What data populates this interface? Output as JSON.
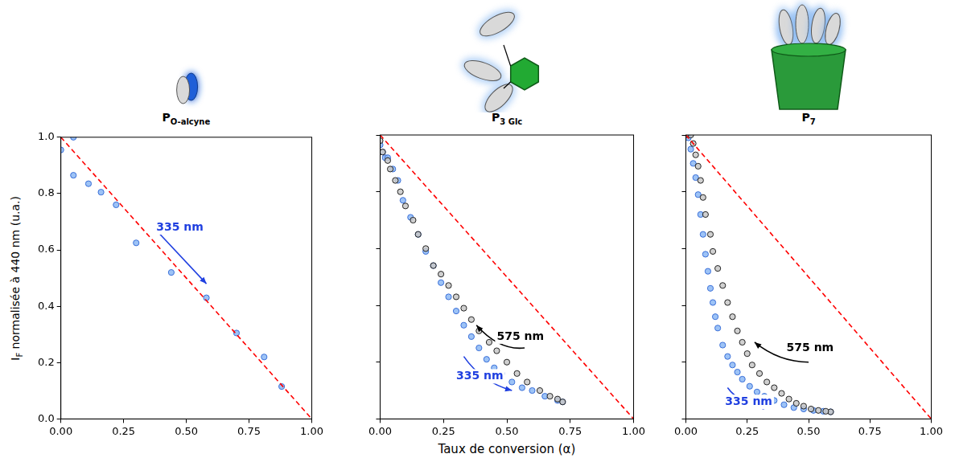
{
  "xlabel": "Taux de conversion (α)",
  "ylabel": [
    {
      "text": "I"
    },
    {
      "text": "F",
      "sub": true
    },
    {
      "text": " normalisée à 440 nm  (u.a.)"
    }
  ],
  "chart_data": [
    {
      "type": "scatter",
      "title": [
        {
          "text": "P"
        },
        {
          "text": "O-alcyne",
          "sub": true
        }
      ],
      "xlim": [
        0,
        1
      ],
      "xticks": [
        {
          "value": 0,
          "label": "0.00"
        },
        {
          "value": 0.25,
          "label": "0.25"
        },
        {
          "value": 0.5,
          "label": "0.50"
        },
        {
          "value": 0.75,
          "label": "0.75"
        },
        {
          "value": 1,
          "label": "1.00"
        }
      ],
      "ylim": [
        0,
        1
      ],
      "yticks": [
        {
          "value": 0,
          "label": "0.0"
        },
        {
          "value": 0.2,
          "label": "0.2"
        },
        {
          "value": 0.4,
          "label": "0.4"
        },
        {
          "value": 0.6,
          "label": "0.6"
        },
        {
          "value": 0.8,
          "label": "0.8"
        },
        {
          "value": 1,
          "label": "1.0"
        }
      ],
      "grid": false,
      "series": [
        {
          "color": "#ff0000",
          "line_style": "dashed",
          "x": [
            0,
            1
          ],
          "values": [
            1,
            0
          ]
        },
        {
          "color": "#3a6fd8",
          "marker": "circle",
          "x": [
            0.0,
            0.05,
            0.05,
            0.11,
            0.16,
            0.22,
            0.3,
            0.44,
            0.58,
            0.7,
            0.81,
            0.88
          ],
          "values": [
            0.955,
            1.0,
            0.865,
            0.835,
            0.805,
            0.76,
            0.625,
            0.52,
            0.43,
            0.305,
            0.22,
            0.115
          ]
        }
      ],
      "annotations": [
        {
          "text": "335 nm",
          "color": "#1f3fe0"
        }
      ]
    },
    {
      "type": "scatter",
      "title": [
        {
          "text": "P"
        },
        {
          "text": "3 Glc",
          "sub": true
        }
      ],
      "xlim": [
        0,
        1
      ],
      "xticks": [
        {
          "value": 0,
          "label": "0.00"
        },
        {
          "value": 0.25,
          "label": "0.25"
        },
        {
          "value": 0.5,
          "label": "0.50"
        },
        {
          "value": 0.75,
          "label": "0.75"
        },
        {
          "value": 1,
          "label": "1.00"
        }
      ],
      "ylim": [
        0,
        1
      ],
      "yticks": [
        {
          "value": 0,
          "label": "0.0"
        },
        {
          "value": 0.2,
          "label": "0.2"
        },
        {
          "value": 0.4,
          "label": "0.4"
        },
        {
          "value": 0.6,
          "label": "0.6"
        },
        {
          "value": 0.8,
          "label": "0.8"
        },
        {
          "value": 1,
          "label": "1.0"
        }
      ],
      "tick_labels": "x",
      "grid": false,
      "series": [
        {
          "color": "#ff0000",
          "line_style": "dashed",
          "x": [
            0,
            1
          ],
          "values": [
            1,
            0
          ]
        },
        {
          "color": "#222222",
          "marker": "circle",
          "x": [
            0.72,
            0.7,
            0.67,
            0.63,
            0.58,
            0.54,
            0.5,
            0.46,
            0.43,
            0.39,
            0.36,
            0.33,
            0.3,
            0.27,
            0.24,
            0.21,
            0.18,
            0.15,
            0.13,
            0.1,
            0.08,
            0.06,
            0.04,
            0.03,
            0.01,
            0.0
          ],
          "values": [
            0.06,
            0.07,
            0.08,
            0.1,
            0.13,
            0.16,
            0.2,
            0.24,
            0.27,
            0.31,
            0.35,
            0.39,
            0.43,
            0.47,
            0.51,
            0.54,
            0.6,
            0.65,
            0.7,
            0.75,
            0.8,
            0.84,
            0.88,
            0.91,
            0.94,
            0.98
          ]
        },
        {
          "color": "#3a6fd8",
          "marker": "circle",
          "x": [
            0.0,
            0.01,
            0.02,
            0.03,
            0.05,
            0.07,
            0.09,
            0.12,
            0.15,
            0.18,
            0.21,
            0.24,
            0.27,
            0.3,
            0.33,
            0.36,
            0.39,
            0.42,
            0.45,
            0.48,
            0.52,
            0.56,
            0.6,
            0.65,
            0.7,
            0.72
          ],
          "values": [
            0.965,
            0.94,
            0.92,
            0.92,
            0.88,
            0.84,
            0.77,
            0.71,
            0.65,
            0.59,
            0.54,
            0.48,
            0.43,
            0.38,
            0.33,
            0.29,
            0.25,
            0.21,
            0.18,
            0.16,
            0.13,
            0.11,
            0.1,
            0.08,
            0.065,
            0.06
          ]
        }
      ],
      "annotations": [
        {
          "text": "575 nm",
          "color": "#000000"
        },
        {
          "text": "335 nm",
          "color": "#1f3fe0"
        }
      ]
    },
    {
      "type": "scatter",
      "title": [
        {
          "text": "P"
        },
        {
          "text": "7",
          "sub": true
        }
      ],
      "xlim": [
        0,
        1
      ],
      "xticks": [
        {
          "value": 0,
          "label": "0.00"
        },
        {
          "value": 0.25,
          "label": "0.25"
        },
        {
          "value": 0.5,
          "label": "0.50"
        },
        {
          "value": 0.75,
          "label": "0.75"
        },
        {
          "value": 1,
          "label": "1.00"
        }
      ],
      "ylim": [
        0,
        1
      ],
      "yticks": [
        {
          "value": 0,
          "label": "0.0"
        },
        {
          "value": 0.2,
          "label": "0.2"
        },
        {
          "value": 0.4,
          "label": "0.4"
        },
        {
          "value": 0.6,
          "label": "0.6"
        },
        {
          "value": 0.8,
          "label": "0.8"
        },
        {
          "value": 1,
          "label": "1.0"
        }
      ],
      "tick_labels": "x",
      "grid": false,
      "series": [
        {
          "color": "#ff0000",
          "line_style": "dashed",
          "x": [
            0,
            1
          ],
          "values": [
            1,
            0
          ]
        },
        {
          "color": "#222222",
          "marker": "circle",
          "x": [
            0.59,
            0.57,
            0.54,
            0.51,
            0.48,
            0.45,
            0.42,
            0.39,
            0.36,
            0.33,
            0.3,
            0.27,
            0.25,
            0.23,
            0.21,
            0.19,
            0.17,
            0.15,
            0.13,
            0.11,
            0.1,
            0.08,
            0.07,
            0.06,
            0.05,
            0.04,
            0.03,
            0.02,
            0.0
          ],
          "values": [
            0.025,
            0.027,
            0.03,
            0.035,
            0.045,
            0.055,
            0.07,
            0.09,
            0.11,
            0.13,
            0.16,
            0.19,
            0.23,
            0.27,
            0.31,
            0.36,
            0.41,
            0.47,
            0.53,
            0.59,
            0.65,
            0.72,
            0.78,
            0.84,
            0.89,
            0.93,
            0.97,
            1.0,
            1.0
          ]
        },
        {
          "color": "#3a6fd8",
          "marker": "circle",
          "x": [
            0.0,
            0.01,
            0.02,
            0.03,
            0.04,
            0.05,
            0.06,
            0.07,
            0.08,
            0.09,
            0.1,
            0.11,
            0.12,
            0.13,
            0.15,
            0.17,
            0.19,
            0.21,
            0.23,
            0.26,
            0.29,
            0.32,
            0.36,
            0.4,
            0.44,
            0.48,
            0.52,
            0.56,
            0.59
          ],
          "values": [
            1.0,
            0.99,
            0.95,
            0.9,
            0.85,
            0.79,
            0.72,
            0.65,
            0.58,
            0.52,
            0.46,
            0.41,
            0.36,
            0.32,
            0.26,
            0.22,
            0.19,
            0.165,
            0.14,
            0.115,
            0.095,
            0.08,
            0.065,
            0.05,
            0.04,
            0.035,
            0.03,
            0.027,
            0.025
          ]
        }
      ],
      "annotations": [
        {
          "text": "575 nm",
          "color": "#000000"
        },
        {
          "text": "335 nm",
          "color": "#1f3fe0"
        }
      ]
    }
  ]
}
